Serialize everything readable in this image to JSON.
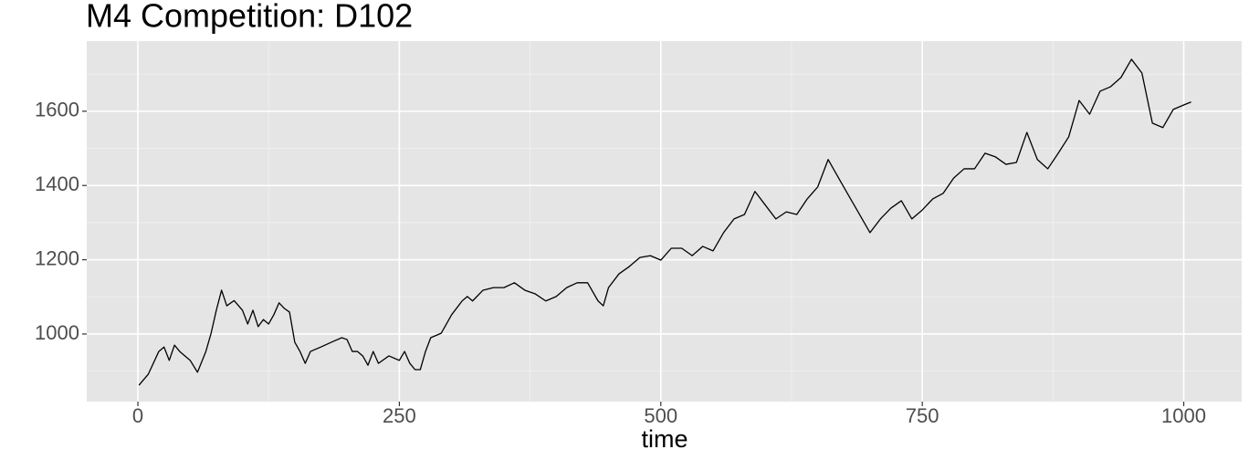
{
  "chart_data": {
    "type": "line",
    "title": "M4 Competition: D102",
    "x_label": "time",
    "x": [
      1,
      10,
      20,
      25,
      30,
      35,
      40,
      50,
      57,
      65,
      70,
      75,
      80,
      85,
      92,
      100,
      105,
      110,
      115,
      120,
      125,
      130,
      135,
      140,
      145,
      150,
      155,
      160,
      165,
      175,
      185,
      195,
      200,
      205,
      210,
      215,
      220,
      225,
      230,
      240,
      250,
      255,
      260,
      265,
      270,
      275,
      280,
      290,
      300,
      310,
      315,
      320,
      330,
      340,
      350,
      360,
      370,
      380,
      390,
      400,
      410,
      420,
      430,
      440,
      445,
      450,
      460,
      470,
      480,
      490,
      500,
      510,
      520,
      530,
      540,
      550,
      560,
      570,
      580,
      590,
      600,
      610,
      620,
      630,
      640,
      650,
      660,
      670,
      680,
      690,
      700,
      710,
      720,
      730,
      740,
      750,
      760,
      770,
      780,
      790,
      800,
      810,
      820,
      830,
      840,
      850,
      860,
      870,
      880,
      890,
      900,
      910,
      920,
      930,
      940,
      950,
      960,
      970,
      980,
      990,
      1000,
      1007
    ],
    "series": [
      {
        "name": "D102",
        "color": "#000000",
        "values": [
          862,
          892,
          953,
          965,
          929,
          970,
          953,
          929,
          897,
          953,
          1002,
          1064,
          1118,
          1076,
          1090,
          1064,
          1027,
          1064,
          1020,
          1039,
          1027,
          1052,
          1084,
          1069,
          1059,
          978,
          953,
          921,
          953,
          965,
          978,
          990,
          985,
          953,
          953,
          941,
          916,
          953,
          921,
          941,
          929,
          953,
          921,
          904,
          904,
          953,
          990,
          1002,
          1052,
          1089,
          1101,
          1089,
          1118,
          1125,
          1125,
          1138,
          1118,
          1108,
          1089,
          1101,
          1125,
          1138,
          1138,
          1089,
          1076,
          1125,
          1162,
          1182,
          1206,
          1211,
          1199,
          1231,
          1231,
          1211,
          1236,
          1224,
          1273,
          1310,
          1322,
          1384,
          1347,
          1310,
          1329,
          1322,
          1364,
          1396,
          1470,
          1420,
          1371,
          1322,
          1273,
          1310,
          1339,
          1359,
          1310,
          1334,
          1364,
          1379,
          1420,
          1445,
          1445,
          1487,
          1477,
          1457,
          1462,
          1543,
          1470,
          1445,
          1487,
          1531,
          1629,
          1592,
          1654,
          1666,
          1691,
          1740,
          1703,
          1568,
          1556,
          1605,
          1617,
          1625
        ]
      }
    ],
    "xlim": [
      -48.9,
      1055.4
    ],
    "ylim": [
      818,
      1789
    ],
    "xticks": [
      0,
      250,
      500,
      750,
      1000
    ],
    "yticks": [
      1000,
      1200,
      1400,
      1600
    ],
    "x_minor_grid": [
      125,
      375,
      625,
      875
    ],
    "y_minor_grid": [
      900,
      1100,
      1300,
      1500,
      1700
    ],
    "grid": true,
    "panel_color": "#e5e5e5"
  }
}
